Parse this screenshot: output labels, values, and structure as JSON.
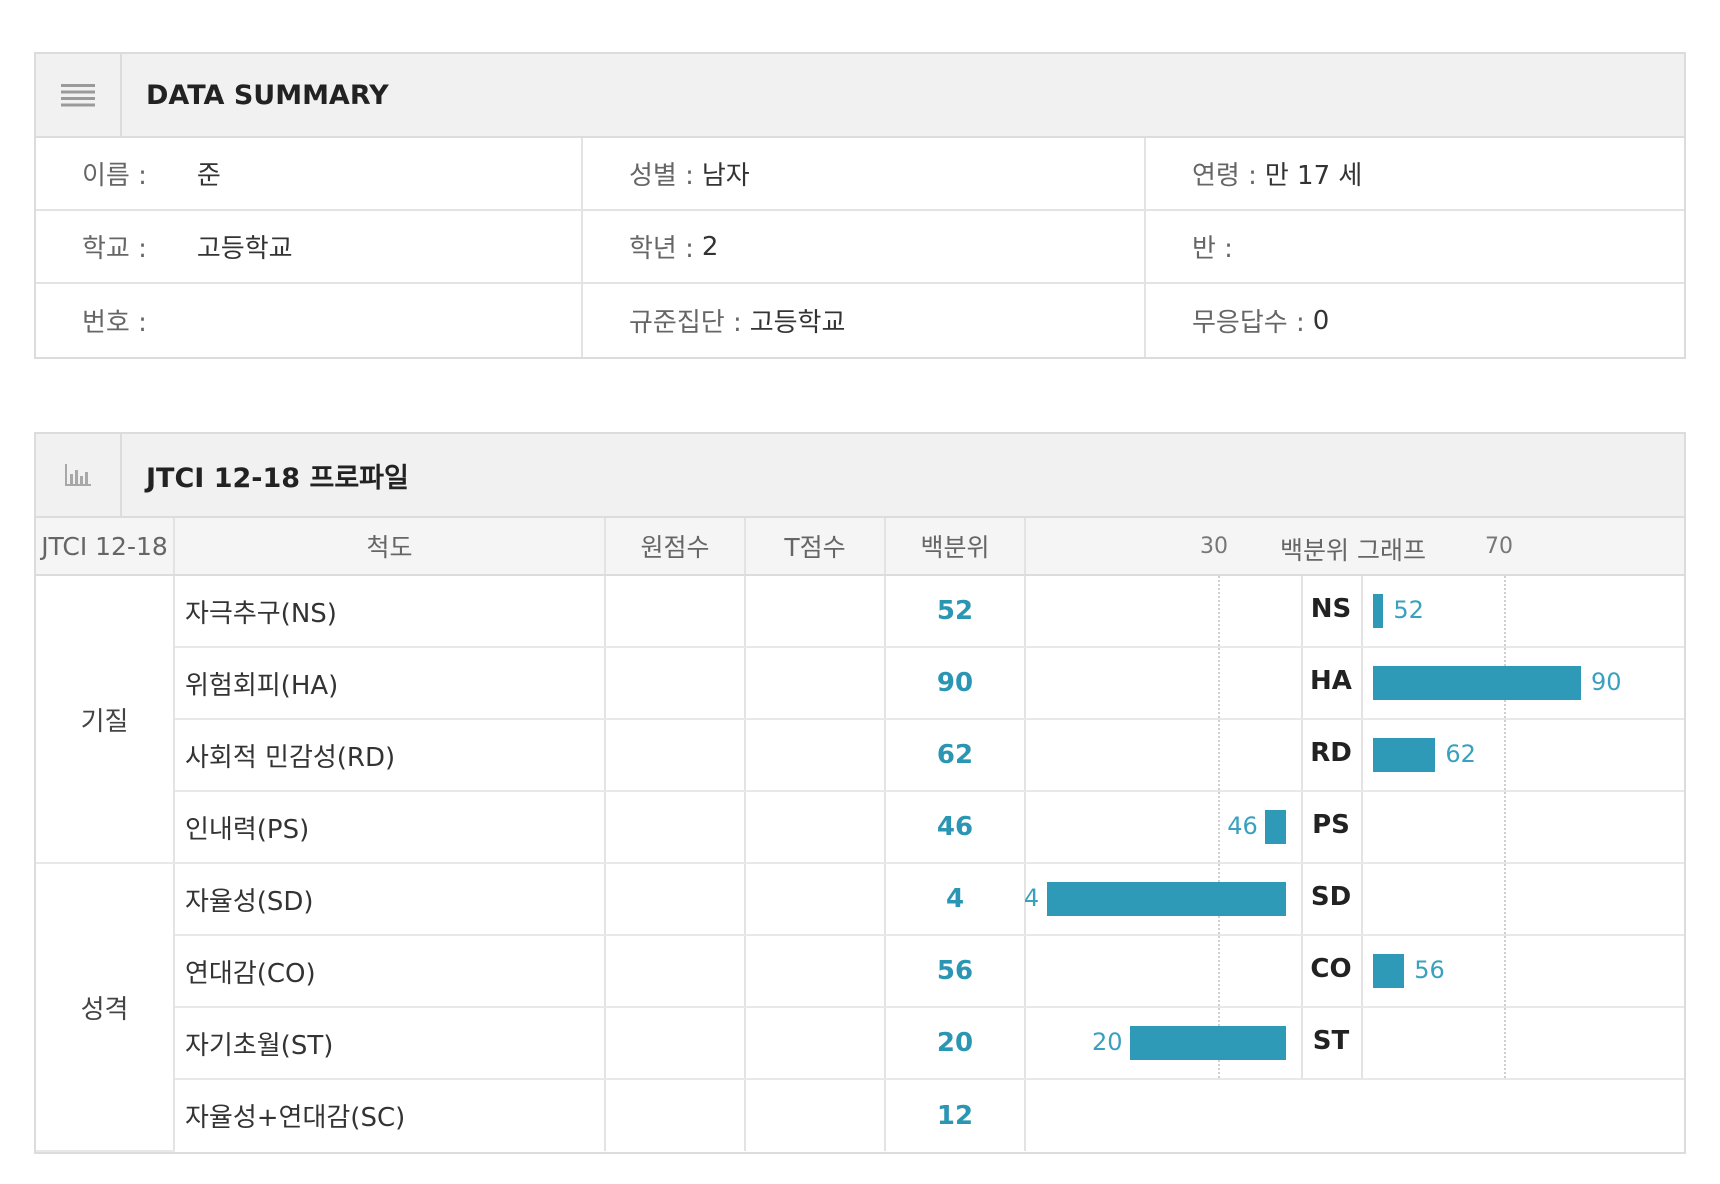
{
  "summary": {
    "title": "DATA SUMMARY",
    "icon": "menu-lines-icon",
    "rows": [
      [
        {
          "label": "이름 :",
          "value": "준"
        },
        {
          "label": "성별 :",
          "value": "남자"
        },
        {
          "label": "연령 :",
          "value": "만 17 세"
        }
      ],
      [
        {
          "label": "학교 :",
          "value": "고등학교"
        },
        {
          "label": "학년 :",
          "value": "2"
        },
        {
          "label": "반 :",
          "value": ""
        }
      ],
      [
        {
          "label": "번호 :",
          "value": ""
        },
        {
          "label": "규준집단 :",
          "value": "고등학교"
        },
        {
          "label": "무응답수 :",
          "value": "0"
        }
      ]
    ]
  },
  "profile": {
    "title": "JTCI 12-18 프로파일",
    "icon": "bar-chart-icon",
    "headers": {
      "group": "JTCI 12-18",
      "scale": "척도",
      "raw": "원점수",
      "t": "T점수",
      "pct": "백분위",
      "graph": "백분위 그래프",
      "mark_low": "30",
      "mark_high": "70"
    },
    "groups": [
      {
        "name": "기질"
      },
      {
        "name": "성격"
      }
    ],
    "rows": [
      {
        "scale": "자극추구(NS)",
        "raw": "",
        "t": "",
        "pct": "52",
        "code": "NS",
        "pct_value": 52
      },
      {
        "scale": "위험회피(HA)",
        "raw": "",
        "t": "",
        "pct": "90",
        "code": "HA",
        "pct_value": 90
      },
      {
        "scale": "사회적 민감성(RD)",
        "raw": "",
        "t": "",
        "pct": "62",
        "code": "RD",
        "pct_value": 62
      },
      {
        "scale": "인내력(PS)",
        "raw": "",
        "t": "",
        "pct": "46",
        "code": "PS",
        "pct_value": 46
      },
      {
        "scale": "자율성(SD)",
        "raw": "",
        "t": "",
        "pct": "4",
        "code": "SD",
        "pct_value": 4
      },
      {
        "scale": "연대감(CO)",
        "raw": "",
        "t": "",
        "pct": "56",
        "code": "CO",
        "pct_value": 56
      },
      {
        "scale": "자기초월(ST)",
        "raw": "",
        "t": "",
        "pct": "20",
        "code": "ST",
        "pct_value": 20
      },
      {
        "scale": "자율성+연대감(SC)",
        "raw": "",
        "t": "",
        "pct": "12",
        "code": "",
        "pct_value": null
      }
    ],
    "bar_color": "#2e9ab8"
  }
}
